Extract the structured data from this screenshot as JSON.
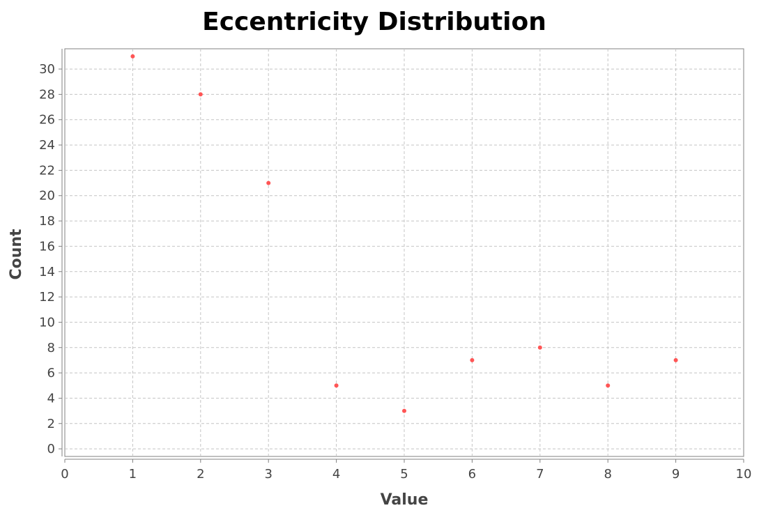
{
  "chart_data": {
    "type": "scatter",
    "title": "Eccentricity Distribution",
    "xlabel": "Value",
    "ylabel": "Count",
    "xlim": [
      0,
      10
    ],
    "ylim": [
      -0.6,
      31.6
    ],
    "x_ticks": [
      0,
      1,
      2,
      3,
      4,
      5,
      6,
      7,
      8,
      9,
      10
    ],
    "y_ticks": [
      0,
      2,
      4,
      6,
      8,
      10,
      12,
      14,
      16,
      18,
      20,
      22,
      24,
      26,
      28,
      30
    ],
    "grid": true,
    "legend": "none",
    "point_color": "#ff5555",
    "series": [
      {
        "x": [
          1,
          2,
          3,
          4,
          5,
          6,
          7,
          8,
          9
        ],
        "y": [
          31,
          28,
          21,
          5,
          3,
          7,
          8,
          5,
          7
        ]
      }
    ]
  }
}
